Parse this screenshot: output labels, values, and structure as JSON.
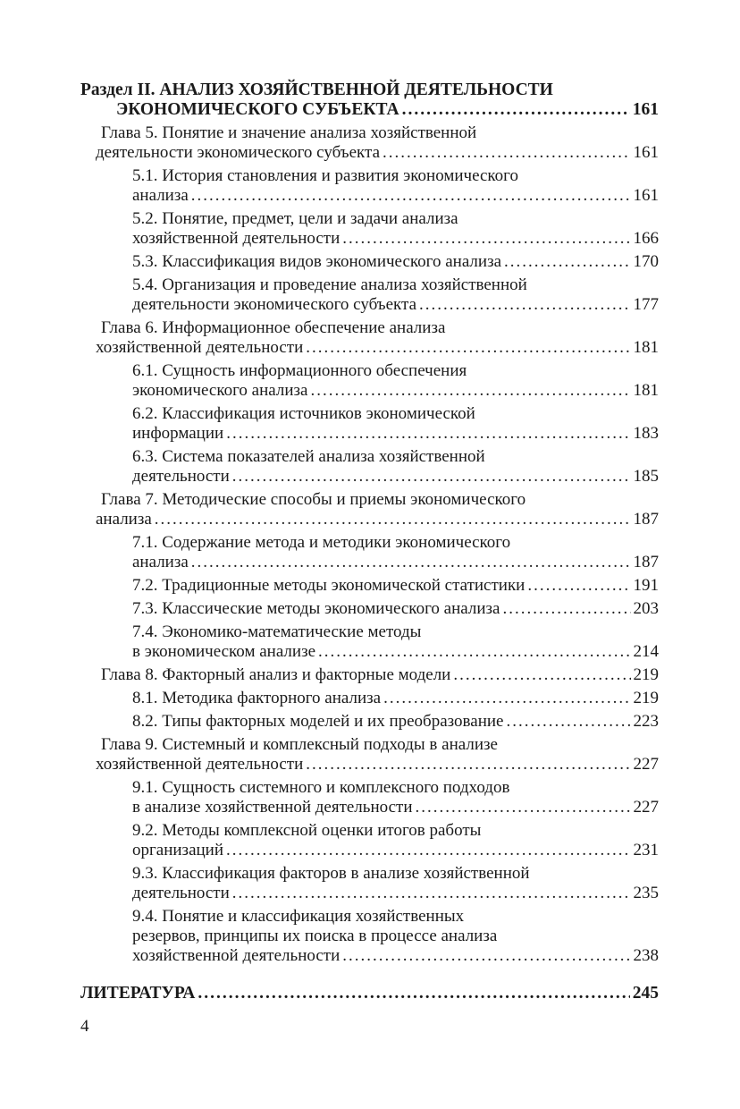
{
  "toc": [
    {
      "level": 0,
      "lines": [
        "Раздел II. АНАЛИЗ ХОЗЯЙСТВЕННОЙ ДЕЯТЕЛЬНОСТИ",
        "ЭКОНОМИЧЕСКОГО СУБЪЕКТА"
      ],
      "page": "161"
    },
    {
      "level": 1,
      "lines": [
        "Глава 5. Понятие и значение анализа хозяйственной",
        "деятельности экономического субъекта"
      ],
      "page": "161"
    },
    {
      "level": 2,
      "lines": [
        "5.1. История становления и развития экономического",
        "анализа"
      ],
      "page": "161"
    },
    {
      "level": 2,
      "lines": [
        "5.2. Понятие, предмет, цели и задачи анализа",
        "хозяйственной деятельности"
      ],
      "page": "166"
    },
    {
      "level": 2,
      "lines": [
        "5.3. Классификация видов экономического анализа"
      ],
      "page": "170"
    },
    {
      "level": 2,
      "lines": [
        "5.4. Организация и проведение анализа хозяйственной",
        "деятельности экономического субъекта"
      ],
      "page": "177"
    },
    {
      "level": 1,
      "lines": [
        "Глава 6. Информационное обеспечение анализа",
        "хозяйственной деятельности"
      ],
      "page": "181"
    },
    {
      "level": 2,
      "lines": [
        "6.1. Сущность информационного обеспечения",
        "экономического анализа"
      ],
      "page": "181"
    },
    {
      "level": 2,
      "lines": [
        "6.2. Классификация источников экономической",
        "информации"
      ],
      "page": "183"
    },
    {
      "level": 2,
      "lines": [
        "6.3. Система показателей анализа хозяйственной",
        "деятельности"
      ],
      "page": "185"
    },
    {
      "level": 1,
      "lines": [
        "Глава 7. Методические способы и приемы экономического",
        "анализа"
      ],
      "page": "187"
    },
    {
      "level": 2,
      "lines": [
        "7.1. Содержание метода и методики экономического",
        "анализа"
      ],
      "page": "187"
    },
    {
      "level": 2,
      "lines": [
        "7.2. Традиционные методы экономической статистики"
      ],
      "page": "191"
    },
    {
      "level": 2,
      "lines": [
        "7.3. Классические методы экономического анализа"
      ],
      "page": "203"
    },
    {
      "level": 2,
      "lines": [
        "7.4. Экономико-математические методы",
        "в экономическом анализе"
      ],
      "page": "214"
    },
    {
      "level": 1,
      "lines": [
        "Глава 8. Факторный анализ и факторные модели"
      ],
      "page": "219"
    },
    {
      "level": 2,
      "lines": [
        "8.1. Методика факторного анализа"
      ],
      "page": "219"
    },
    {
      "level": 2,
      "lines": [
        "8.2. Типы факторных моделей и их преобразование"
      ],
      "page": "223"
    },
    {
      "level": 1,
      "lines": [
        "Глава 9. Системный и комплексный подходы в анализе",
        "хозяйственной деятельности"
      ],
      "page": "227"
    },
    {
      "level": 2,
      "lines": [
        "9.1. Сущность системного и комплексного подходов",
        "в анализе хозяйственной деятельности"
      ],
      "page": "227"
    },
    {
      "level": 2,
      "lines": [
        "9.2. Методы комплексной оценки итогов работы",
        "организаций"
      ],
      "page": "231"
    },
    {
      "level": 2,
      "lines": [
        "9.3. Классификация факторов в анализе хозяйственной",
        "деятельности"
      ],
      "page": "235"
    },
    {
      "level": 2,
      "lines": [
        "9.4. Понятие и классификация хозяйственных",
        "резервов, принципы их поиска в процессе анализа",
        "хозяйственной деятельности"
      ],
      "page": "238"
    },
    {
      "level": 3,
      "lines": [
        "ЛИТЕРАТУРА"
      ],
      "page": "245"
    }
  ],
  "page_number": "4"
}
